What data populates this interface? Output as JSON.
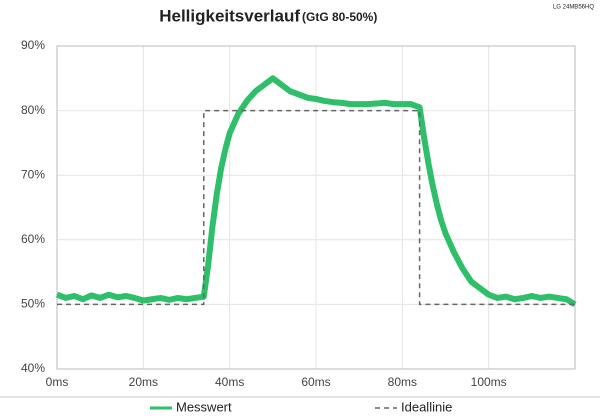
{
  "chart_data": {
    "type": "line",
    "title": "Helligkeitsverlauf",
    "subtitle": "(GtG 80-50%)",
    "model": "LG 24MB56HQ",
    "xlim": [
      0,
      120
    ],
    "ylim": [
      40,
      90
    ],
    "xticks": [
      {
        "value": 0,
        "label": "0ms"
      },
      {
        "value": 20,
        "label": "20ms"
      },
      {
        "value": 40,
        "label": "40ms"
      },
      {
        "value": 60,
        "label": "60ms"
      },
      {
        "value": 80,
        "label": "80ms"
      },
      {
        "value": 100,
        "label": "100ms"
      }
    ],
    "yticks": [
      {
        "value": 40,
        "label": "40%"
      },
      {
        "value": 50,
        "label": "50%"
      },
      {
        "value": 60,
        "label": "60%"
      },
      {
        "value": 70,
        "label": "70%"
      },
      {
        "value": 80,
        "label": "80%"
      },
      {
        "value": 90,
        "label": "90%"
      }
    ],
    "grid": true,
    "series": [
      {
        "name": "Messwert",
        "color": "#2fbf6a",
        "dash": false,
        "x": [
          0,
          2,
          4,
          6,
          8,
          10,
          12,
          14,
          16,
          18,
          20,
          22,
          24,
          26,
          28,
          30,
          32,
          34,
          35,
          36,
          37,
          38,
          39,
          40,
          42,
          44,
          46,
          48,
          50,
          52,
          54,
          56,
          58,
          60,
          62,
          64,
          66,
          68,
          70,
          72,
          74,
          76,
          78,
          80,
          82,
          84,
          85,
          86,
          87,
          88,
          89,
          90,
          92,
          94,
          96,
          98,
          100,
          102,
          104,
          106,
          108,
          110,
          112,
          114,
          116,
          118,
          120
        ],
        "values": [
          51.5,
          51,
          51.3,
          50.8,
          51.4,
          51,
          51.5,
          51.1,
          51.3,
          51,
          50.6,
          50.8,
          51,
          50.7,
          51,
          50.8,
          51,
          51.2,
          56,
          62,
          67,
          71,
          74,
          76.5,
          79.5,
          81.5,
          83,
          84,
          85,
          84,
          83,
          82.5,
          82,
          81.8,
          81.5,
          81.3,
          81.2,
          81,
          81,
          81,
          81.1,
          81.2,
          81,
          81,
          81,
          80.5,
          76,
          72,
          68.5,
          65.5,
          63,
          61,
          58,
          55.5,
          53.5,
          52.5,
          51.5,
          51,
          51.2,
          50.8,
          51,
          51.3,
          51,
          51.2,
          51,
          50.8,
          50
        ]
      },
      {
        "name": "Ideallinie",
        "color": "#666666",
        "dash": true,
        "x": [
          0,
          34,
          34,
          84,
          84,
          120
        ],
        "values": [
          50,
          50,
          80,
          80,
          50,
          50
        ]
      }
    ]
  }
}
